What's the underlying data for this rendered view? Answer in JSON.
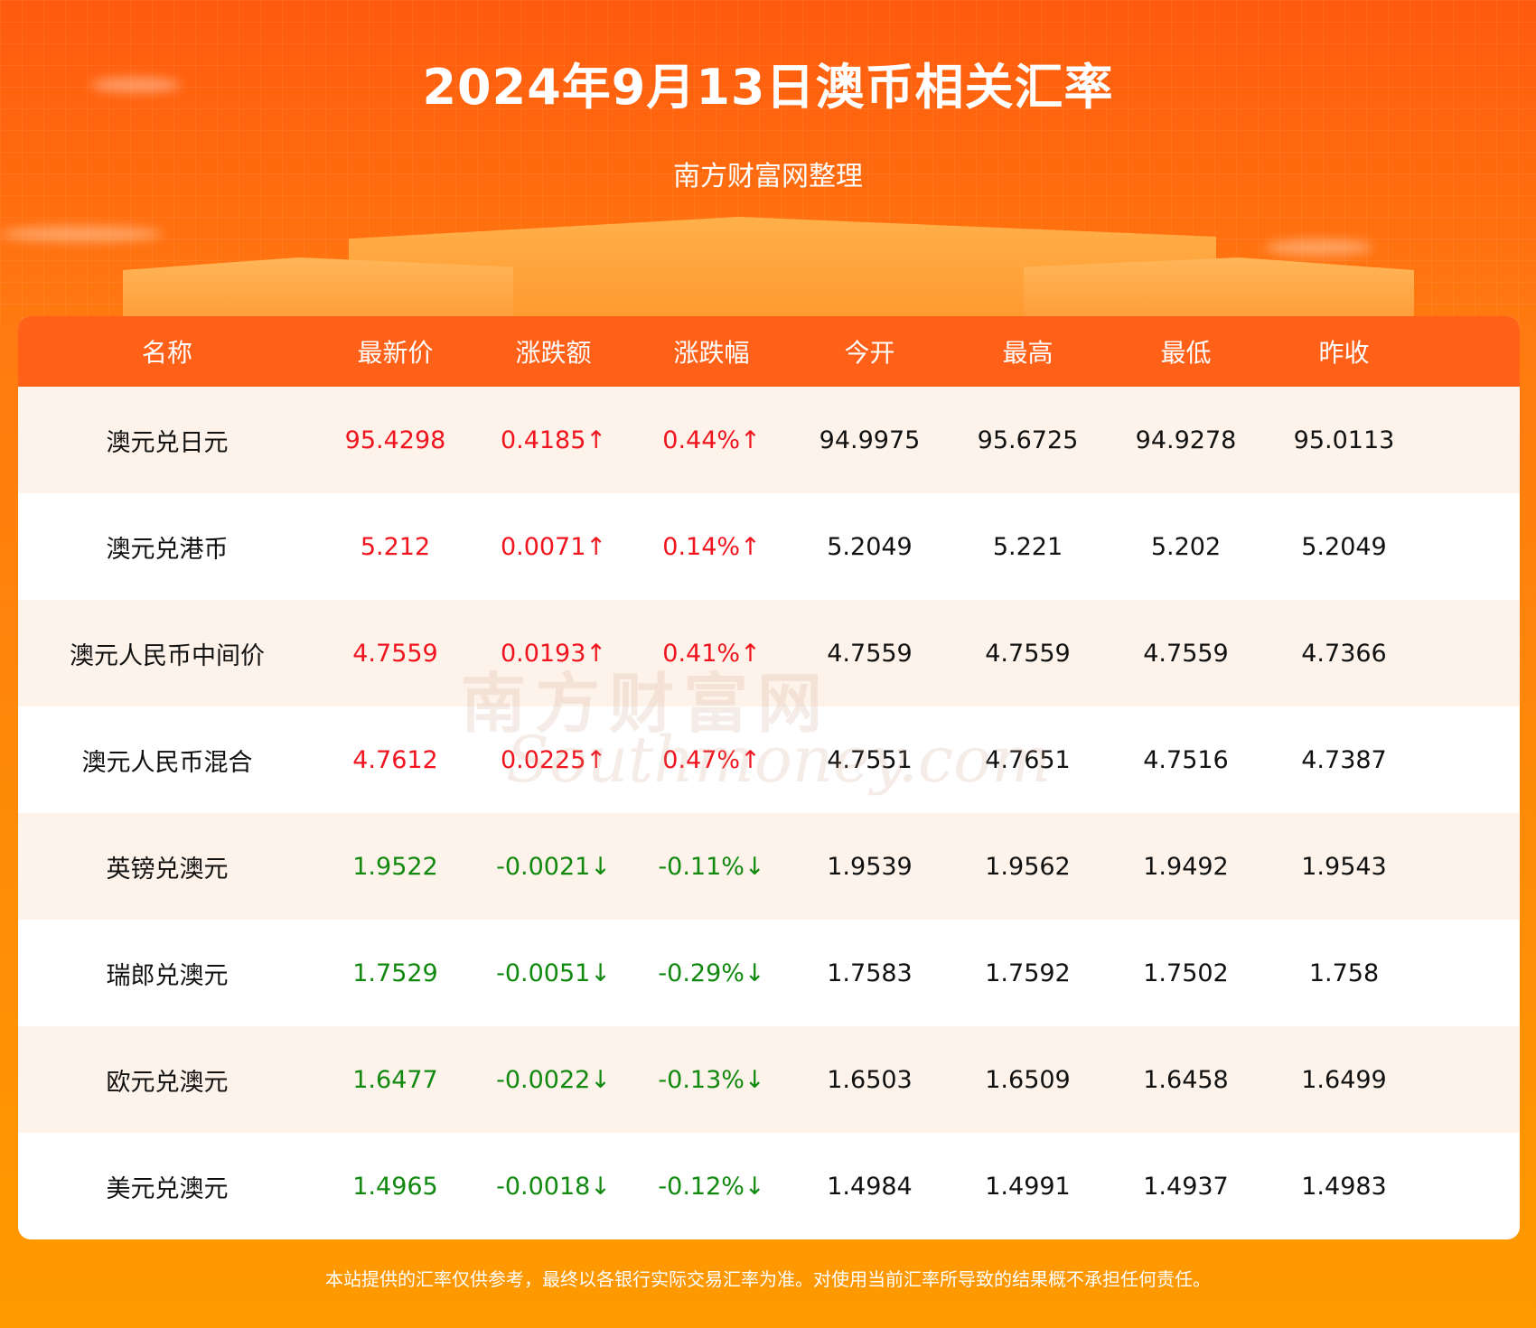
{
  "header": {
    "title": "2024年9月13日澳币相关汇率",
    "subtitle": "南方财富网整理"
  },
  "watermark": {
    "cn": "南方财富网",
    "en": "Southmoney.com"
  },
  "table": {
    "columns": [
      "名称",
      "最新价",
      "涨跌额",
      "涨跌幅",
      "今开",
      "最高",
      "最低",
      "昨收"
    ],
    "rows": [
      {
        "name": "澳元兑日元",
        "latest": "95.4298",
        "change": "0.4185↑",
        "pct": "0.44%↑",
        "open": "94.9975",
        "high": "95.6725",
        "low": "94.9278",
        "prev": "95.0113",
        "dir": "up"
      },
      {
        "name": "澳元兑港币",
        "latest": "5.212",
        "change": "0.0071↑",
        "pct": "0.14%↑",
        "open": "5.2049",
        "high": "5.221",
        "low": "5.202",
        "prev": "5.2049",
        "dir": "up"
      },
      {
        "name": "澳元人民币中间价",
        "latest": "4.7559",
        "change": "0.0193↑",
        "pct": "0.41%↑",
        "open": "4.7559",
        "high": "4.7559",
        "low": "4.7559",
        "prev": "4.7366",
        "dir": "up"
      },
      {
        "name": "澳元人民币混合",
        "latest": "4.7612",
        "change": "0.0225↑",
        "pct": "0.47%↑",
        "open": "4.7551",
        "high": "4.7651",
        "low": "4.7516",
        "prev": "4.7387",
        "dir": "up"
      },
      {
        "name": "英镑兑澳元",
        "latest": "1.9522",
        "change": "-0.0021↓",
        "pct": "-0.11%↓",
        "open": "1.9539",
        "high": "1.9562",
        "low": "1.9492",
        "prev": "1.9543",
        "dir": "down"
      },
      {
        "name": "瑞郎兑澳元",
        "latest": "1.7529",
        "change": "-0.0051↓",
        "pct": "-0.29%↓",
        "open": "1.7583",
        "high": "1.7592",
        "low": "1.7502",
        "prev": "1.758",
        "dir": "down"
      },
      {
        "name": "欧元兑澳元",
        "latest": "1.6477",
        "change": "-0.0022↓",
        "pct": "-0.13%↓",
        "open": "1.6503",
        "high": "1.6509",
        "low": "1.6458",
        "prev": "1.6499",
        "dir": "down"
      },
      {
        "name": "美元兑澳元",
        "latest": "1.4965",
        "change": "-0.0018↓",
        "pct": "-0.12%↓",
        "open": "1.4984",
        "high": "1.4991",
        "low": "1.4937",
        "prev": "1.4983",
        "dir": "down"
      }
    ]
  },
  "colors": {
    "up": "#f0141e",
    "down": "#11890f",
    "header": "#ff6119"
  },
  "footer": {
    "disclaimer": "本站提供的汇率仅供参考，最终以各银行实际交易汇率为准。对使用当前汇率所导致的结果概不承担任何责任。"
  }
}
